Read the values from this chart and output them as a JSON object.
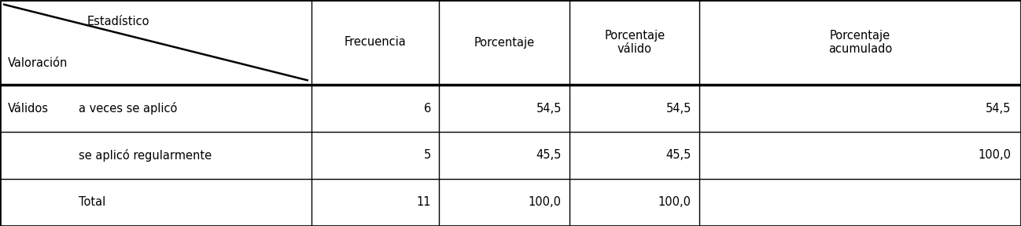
{
  "header_diag_top": "Estadístico",
  "header_diag_bottom": "Valoración",
  "col_headers": [
    "Frecuencia",
    "Porcentaje",
    "Porcentaje\nválido",
    "Porcentaje\nacumulado"
  ],
  "rows": [
    {
      "group": "Válidos",
      "label": "a veces se aplicó",
      "values": [
        "6",
        "54,5",
        "54,5",
        "54,5"
      ]
    },
    {
      "group": "",
      "label": "se aplicó regularmente",
      "values": [
        "5",
        "45,5",
        "45,5",
        "100,0"
      ]
    },
    {
      "group": "",
      "label": "Total",
      "values": [
        "11",
        "100,0",
        "100,0",
        ""
      ]
    }
  ],
  "background_color": "#ffffff",
  "border_color": "#000000",
  "text_color": "#000000",
  "font_size": 10.5
}
